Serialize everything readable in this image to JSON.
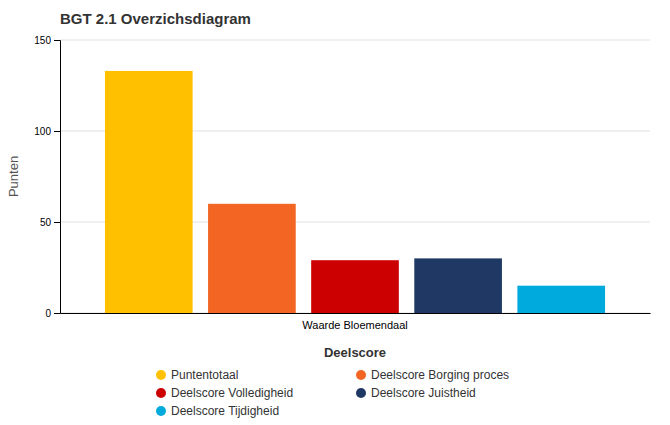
{
  "chart_data": {
    "type": "bar",
    "title": "BGT 2.1 Overzichsdiagram",
    "xlabel": "Deelscore",
    "ylabel": "Punten",
    "categories": [
      "Waarde Bloemendaal"
    ],
    "series": [
      {
        "name": "Puntentotaal",
        "color": "#FFC000",
        "values": [
          133
        ]
      },
      {
        "name": "Deelscore Borging proces",
        "color": "#F26522",
        "values": [
          60
        ]
      },
      {
        "name": "Deelscore Volledigheid",
        "color": "#CC0000",
        "values": [
          29
        ]
      },
      {
        "name": "Deelscore Juistheid",
        "color": "#1F3864",
        "values": [
          30
        ]
      },
      {
        "name": "Deelscore Tijdigheid",
        "color": "#00AADD",
        "values": [
          15
        ]
      }
    ],
    "ylim": [
      0,
      150
    ],
    "yticks": [
      0,
      50,
      100,
      150
    ],
    "grid": true,
    "legend": "bottom"
  }
}
